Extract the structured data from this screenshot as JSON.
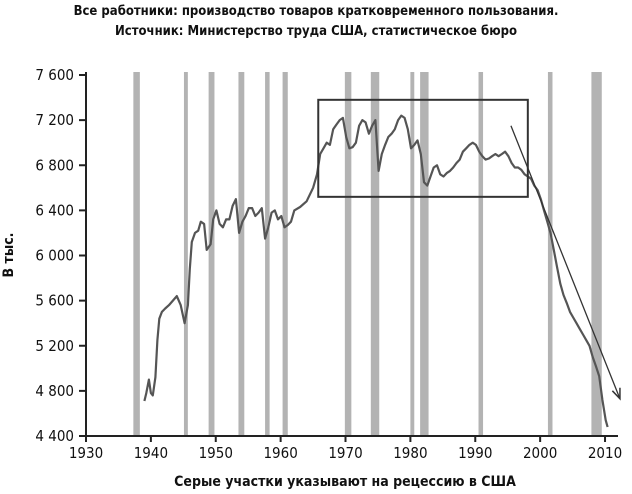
{
  "chart_data": {
    "type": "line",
    "title": "Все работники: производство товаров кратковременного пользования.",
    "subtitle": "Источник: Министерство труда США, статистическое бюро",
    "xlabel": "Серые участки указывают на рецессию в США",
    "ylabel": "В тыс.",
    "xlim": [
      1930,
      2012
    ],
    "ylim": [
      4400,
      7600
    ],
    "x_ticks": [
      1930,
      1940,
      1950,
      1960,
      1970,
      1980,
      1990,
      2000,
      2010
    ],
    "y_ticks": [
      4400,
      4800,
      5200,
      5600,
      6000,
      6400,
      6800,
      7200,
      7600
    ],
    "y_tick_labels": [
      "4 400",
      "4 800",
      "5 200",
      "5 600",
      "6 000",
      "6 400",
      "6 800",
      "7 200",
      "7 600"
    ],
    "grid": false,
    "recession_shading_color": "#b3b3b3",
    "recessions": [
      [
        1937.3,
        1938.3
      ],
      [
        1945.1,
        1945.7
      ],
      [
        1948.9,
        1949.8
      ],
      [
        1953.5,
        1954.4
      ],
      [
        1957.6,
        1958.3
      ],
      [
        1960.3,
        1961.1
      ],
      [
        1969.9,
        1970.9
      ],
      [
        1973.9,
        1975.2
      ],
      [
        1980.0,
        1980.6
      ],
      [
        1981.5,
        1982.8
      ],
      [
        1990.5,
        1991.2
      ],
      [
        2001.2,
        2001.9
      ],
      [
        2007.9,
        2009.5
      ]
    ],
    "highlight_box": {
      "x": [
        1965.8,
        1998.1
      ],
      "y": [
        6520,
        7380
      ]
    },
    "trend_arrow": {
      "from": [
        1995.5,
        7150
      ],
      "to": [
        2012.3,
        4730
      ]
    },
    "series": [
      {
        "color": "#555555",
        "x": [
          1939.0,
          1939.3,
          1939.7,
          1940.0,
          1940.3,
          1940.7,
          1941.0,
          1941.3,
          1941.7,
          1942.2,
          1942.8,
          1943.4,
          1944.0,
          1944.6,
          1945.2,
          1945.7,
          1946.0,
          1946.3,
          1946.8,
          1947.3,
          1947.7,
          1948.2,
          1948.6,
          1949.2,
          1949.6,
          1950.1,
          1950.6,
          1951.1,
          1951.6,
          1952.1,
          1952.6,
          1953.1,
          1953.6,
          1954.1,
          1954.6,
          1955.1,
          1955.6,
          1956.1,
          1956.6,
          1957.1,
          1957.6,
          1958.1,
          1958.6,
          1959.1,
          1959.6,
          1960.1,
          1960.6,
          1961.1,
          1961.6,
          1962.1,
          1963.0,
          1964.0,
          1965.0,
          1965.6,
          1966.1,
          1966.6,
          1967.1,
          1967.6,
          1968.1,
          1968.6,
          1969.1,
          1969.6,
          1970.1,
          1970.6,
          1971.1,
          1971.6,
          1972.1,
          1972.6,
          1973.1,
          1973.6,
          1974.1,
          1974.6,
          1975.1,
          1975.6,
          1976.1,
          1976.6,
          1977.1,
          1977.6,
          1978.1,
          1978.6,
          1979.1,
          1979.6,
          1980.1,
          1980.6,
          1981.1,
          1981.6,
          1982.1,
          1982.6,
          1983.1,
          1983.6,
          1984.1,
          1984.6,
          1985.1,
          1985.6,
          1986.1,
          1986.6,
          1987.1,
          1987.6,
          1988.1,
          1988.6,
          1989.1,
          1989.6,
          1990.1,
          1990.6,
          1991.1,
          1991.6,
          1992.1,
          1992.6,
          1993.1,
          1993.6,
          1994.1,
          1994.6,
          1995.1,
          1995.6,
          1996.1,
          1996.6,
          1997.1,
          1997.6,
          1998.1,
          1998.6,
          1999.1,
          1999.6,
          2000.1,
          2000.6,
          2001.1,
          2001.6,
          2002.1,
          2002.6,
          2003.1,
          2003.6,
          2004.1,
          2004.6,
          2005.1,
          2005.6,
          2006.1,
          2006.6,
          2007.1,
          2007.6,
          2008.1,
          2008.6,
          2009.1,
          2009.6,
          2010.1,
          2010.4
        ],
        "values": [
          4710,
          4780,
          4900,
          4780,
          4760,
          4920,
          5250,
          5440,
          5500,
          5530,
          5560,
          5600,
          5640,
          5560,
          5400,
          5560,
          5880,
          6120,
          6200,
          6220,
          6300,
          6280,
          6050,
          6100,
          6320,
          6400,
          6280,
          6250,
          6320,
          6320,
          6440,
          6500,
          6200,
          6300,
          6350,
          6420,
          6420,
          6350,
          6380,
          6420,
          6150,
          6250,
          6380,
          6400,
          6320,
          6350,
          6250,
          6270,
          6300,
          6400,
          6430,
          6480,
          6600,
          6720,
          6900,
          6950,
          7000,
          6980,
          7120,
          7160,
          7200,
          7220,
          7050,
          6950,
          6960,
          7000,
          7150,
          7200,
          7180,
          7080,
          7150,
          7200,
          6750,
          6900,
          6980,
          7050,
          7080,
          7120,
          7200,
          7240,
          7220,
          7120,
          6950,
          6980,
          7020,
          6900,
          6650,
          6620,
          6700,
          6780,
          6800,
          6720,
          6700,
          6730,
          6750,
          6780,
          6820,
          6850,
          6920,
          6950,
          6980,
          7000,
          6980,
          6920,
          6880,
          6850,
          6860,
          6880,
          6900,
          6880,
          6900,
          6920,
          6880,
          6820,
          6780,
          6780,
          6760,
          6720,
          6700,
          6680,
          6620,
          6580,
          6500,
          6400,
          6300,
          6200,
          6050,
          5900,
          5750,
          5650,
          5580,
          5500,
          5450,
          5400,
          5350,
          5300,
          5250,
          5200,
          5100,
          5020,
          4930,
          4720,
          4540,
          4480
        ]
      }
    ]
  }
}
